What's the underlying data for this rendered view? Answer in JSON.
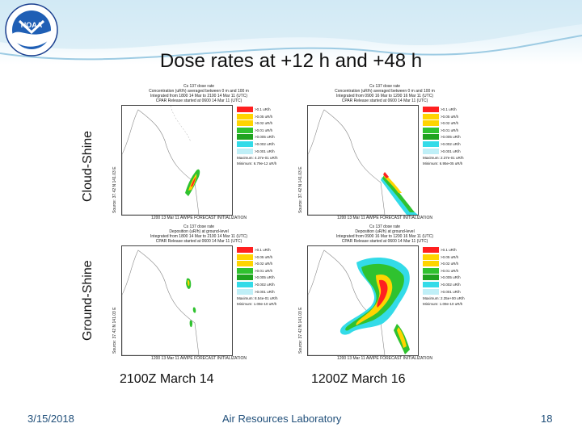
{
  "logo_text": "NOAA",
  "slide_title": "Dose rates at +12 h and +48 h",
  "row_labels": {
    "top": "Cloud-Shine",
    "bottom": "Ground-Shine"
  },
  "captions": {
    "left": "2100Z March 14",
    "right": "1200Z March 16"
  },
  "footer": {
    "date": "3/15/2018",
    "center": "Air Resources Laboratory",
    "page": "18"
  },
  "legend_levels": [
    {
      "label": ">0.1  uR/h",
      "color": "#ff2020"
    },
    {
      "label": ">0.05 uR/h",
      "color": "#ffd400"
    },
    {
      "label": ">0.02 uR/h",
      "color": "#ffd400"
    },
    {
      "label": ">0.01 uR/h",
      "color": "#2fc22f"
    },
    {
      "label": ">0.005 uR/h",
      "color": "#1fa31f"
    },
    {
      "label": ">0.002 uR/h",
      "color": "#33dbe8"
    },
    {
      "label": ">0.001 uR/h",
      "color": "#bfeff7"
    }
  ],
  "panels": [
    {
      "title": "Cs 137 dose rate",
      "subtitle": "Concentration (uR/h) averaged between 0 m and 100 m",
      "integ": "Integrated from 1800 14 Mar to 2100 14 Mar 11 (UTC)",
      "release": "CPAR Release started at 0600 14 Mar 11 (UTC)",
      "ylabel": "Source: 37.42 N 141.03 E",
      "max": "Maximum: 4.37e-01 uR/h",
      "min": "Minimum: 6.79e-12 uR/h",
      "footer": "1200 13 Mar 11 AWIPE FORECAST INITIALIZATION"
    },
    {
      "title": "Cs 137 dose rate",
      "subtitle": "Concentration (uR/h) averaged between 0 m and 100 m",
      "integ": "Integrated from 0900 16 Mar to 1200 16 Mar 11 (UTC)",
      "release": "CPAR Release started at 0600 14 Mar 11 (UTC)",
      "ylabel": "Source: 37.42 N 141.03 E",
      "max": "Maximum: 2.37e-01 uR/h",
      "min": "Minimum: 6.95e-05 uR/h",
      "footer": "1200 13 Mar 11 AWIPE FORECAST INITIALIZATION"
    },
    {
      "title": "Cs 137 dose rate",
      "subtitle": "Deposition (uR/h) at ground-level",
      "integ": "Integrated from 1800 14 Mar to 2100 14 Mar 11 (UTC)",
      "release": "CPAR Release started at 0600 14 Mar 11 (UTC)",
      "ylabel": "Source: 37.42 N 141.03 E",
      "max": "Maximum: 8.54e-01 uR/h",
      "min": "Minimum: 1.09e-10 uR/h",
      "footer": "1200 13 Mar 11 AWIPE FORECAST INITIALIZATION"
    },
    {
      "title": "Cs 137 dose rate",
      "subtitle": "Deposition (uR/h) at ground-level",
      "integ": "Integrated from 0900 16 Mar to 1200 16 Mar 11 (UTC)",
      "release": "CPAR Release started at 0600 14 Mar 11 (UTC)",
      "ylabel": "Source: 37.42 N 141.03 E",
      "max": "Maximum: 2.35e+00 uR/h",
      "min": "Minimum: 1.09e-10 uR/h",
      "footer": "1200 13 Mar 11 AWIPE FORECAST INITIALIZATION"
    }
  ]
}
